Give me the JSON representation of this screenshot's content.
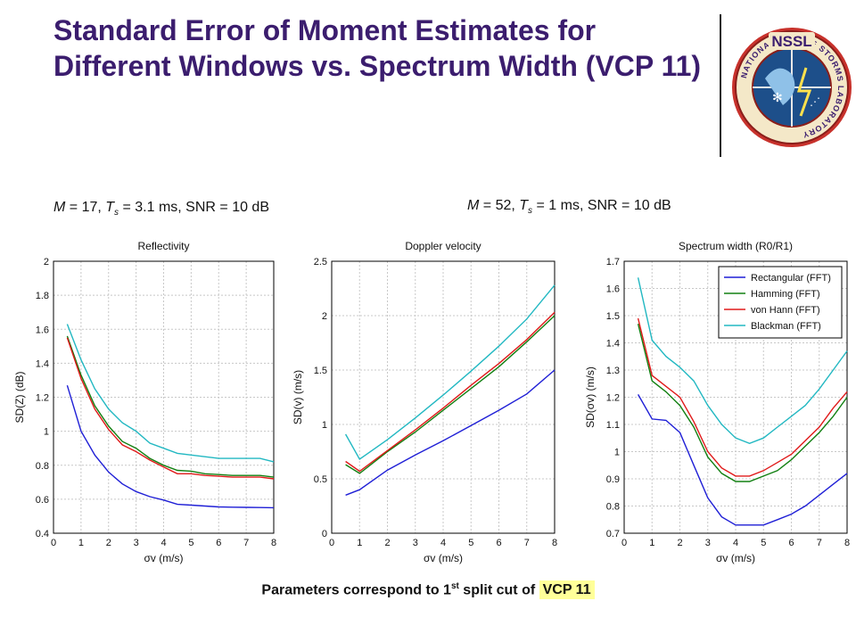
{
  "header": {
    "title": "Standard Error of Moment Estimates for Different Windows vs. Spectrum Width (VCP 11)"
  },
  "logo": {
    "text": "NSSL",
    "ring_text": "NATIONAL SEVERE STORMS LABORATORY"
  },
  "subheads": {
    "left": {
      "M": "M",
      "M_value": " = 17, ",
      "T": "T",
      "T_sub": "s",
      "rest": " = 3.1 ms, SNR = 10 dB"
    },
    "right": {
      "M": "M",
      "M_value": " = 52, ",
      "T": "T",
      "T_sub": "s",
      "rest": " = 1 ms, SNR = 10 dB"
    }
  },
  "footer": {
    "before": "Parameters correspond to 1",
    "sup": "st",
    "after": " split cut of ",
    "highlight": "VCP 11"
  },
  "colors": {
    "title": "#3b1d6e",
    "rect": "#1f1fd6",
    "hamming": "#128012",
    "vonhann": "#e01a1a",
    "blackman": "#22b8c2",
    "highlight": "#ffff99"
  },
  "chart_data": [
    {
      "type": "line",
      "title": "Reflectivity",
      "xlabel": "σv (m/s)",
      "ylabel": "SD(Z) (dB)",
      "xlim": [
        0,
        8
      ],
      "ylim": [
        0.4,
        2
      ],
      "xticks": [
        0,
        1,
        2,
        3,
        4,
        5,
        6,
        7,
        8
      ],
      "yticks": [
        0.4,
        0.6,
        0.8,
        1,
        1.2,
        1.4,
        1.6,
        1.8,
        2
      ],
      "x": [
        0.5,
        1,
        1.5,
        2,
        2.5,
        3,
        3.5,
        4,
        4.5,
        5,
        5.5,
        6,
        6.5,
        7,
        7.5,
        8
      ],
      "series": [
        {
          "color": "#1f1fd6",
          "values": [
            1.27,
            1.0,
            0.86,
            0.76,
            0.69,
            0.645,
            0.615,
            0.595,
            0.57,
            0.565,
            0.56,
            0.555,
            0.553,
            0.552,
            0.551,
            0.55
          ]
        },
        {
          "color": "#128012",
          "values": [
            1.56,
            1.33,
            1.15,
            1.03,
            0.94,
            0.9,
            0.84,
            0.8,
            0.77,
            0.765,
            0.75,
            0.745,
            0.74,
            0.74,
            0.74,
            0.73
          ]
        },
        {
          "color": "#e01a1a",
          "values": [
            1.55,
            1.31,
            1.13,
            1.01,
            0.92,
            0.88,
            0.83,
            0.79,
            0.75,
            0.75,
            0.74,
            0.735,
            0.73,
            0.73,
            0.73,
            0.72
          ]
        },
        {
          "color": "#22b8c2",
          "values": [
            1.63,
            1.42,
            1.25,
            1.13,
            1.05,
            1.0,
            0.93,
            0.9,
            0.87,
            0.86,
            0.85,
            0.84,
            0.84,
            0.84,
            0.84,
            0.82
          ]
        }
      ]
    },
    {
      "type": "line",
      "title": "Doppler velocity",
      "xlabel": "σv (m/s)",
      "ylabel": "SD(v) (m/s)",
      "xlim": [
        0,
        8
      ],
      "ylim": [
        0,
        2.5
      ],
      "xticks": [
        0,
        1,
        2,
        3,
        4,
        5,
        6,
        7,
        8
      ],
      "yticks": [
        0,
        0.5,
        1,
        1.5,
        2,
        2.5
      ],
      "x": [
        0.5,
        1,
        2,
        3,
        4,
        5,
        6,
        7,
        8
      ],
      "series": [
        {
          "color": "#1f1fd6",
          "values": [
            0.35,
            0.4,
            0.58,
            0.72,
            0.85,
            0.99,
            1.13,
            1.28,
            1.5
          ]
        },
        {
          "color": "#128012",
          "values": [
            0.63,
            0.55,
            0.75,
            0.93,
            1.13,
            1.33,
            1.53,
            1.76,
            2.0
          ]
        },
        {
          "color": "#e01a1a",
          "values": [
            0.66,
            0.57,
            0.76,
            0.95,
            1.15,
            1.36,
            1.56,
            1.78,
            2.03
          ]
        },
        {
          "color": "#22b8c2",
          "values": [
            0.91,
            0.68,
            0.86,
            1.06,
            1.27,
            1.49,
            1.72,
            1.97,
            2.28
          ]
        }
      ]
    },
    {
      "type": "line",
      "title": "Spectrum width (R0/R1)",
      "xlabel": "σv (m/s)",
      "ylabel": "SD(σv) (m/s)",
      "xlim": [
        0,
        8
      ],
      "ylim": [
        0.7,
        1.7
      ],
      "xticks": [
        0,
        1,
        2,
        3,
        4,
        5,
        6,
        7,
        8
      ],
      "yticks": [
        0.7,
        0.8,
        0.9,
        1,
        1.1,
        1.2,
        1.3,
        1.4,
        1.5,
        1.6,
        1.7
      ],
      "legend": {
        "placement": "top-right"
      },
      "x": [
        0.5,
        1,
        1.5,
        2,
        2.5,
        3,
        3.5,
        4,
        4.5,
        5,
        5.5,
        6,
        6.5,
        7,
        7.5,
        8
      ],
      "series": [
        {
          "name": "Rectangular (FFT)",
          "color": "#1f1fd6",
          "values": [
            1.21,
            1.12,
            1.115,
            1.07,
            0.95,
            0.83,
            0.76,
            0.73,
            0.73,
            0.73,
            0.75,
            0.77,
            0.8,
            0.84,
            0.88,
            0.92
          ]
        },
        {
          "name": "Hamming (FFT)",
          "color": "#128012",
          "values": [
            1.47,
            1.26,
            1.22,
            1.17,
            1.09,
            0.98,
            0.92,
            0.89,
            0.89,
            0.91,
            0.93,
            0.97,
            1.02,
            1.07,
            1.13,
            1.2
          ]
        },
        {
          "name": "von Hann (FFT)",
          "color": "#e01a1a",
          "values": [
            1.49,
            1.28,
            1.24,
            1.2,
            1.11,
            1.0,
            0.94,
            0.91,
            0.91,
            0.93,
            0.96,
            0.99,
            1.04,
            1.09,
            1.16,
            1.22
          ]
        },
        {
          "name": "Blackman (FFT)",
          "color": "#22b8c2",
          "values": [
            1.64,
            1.41,
            1.35,
            1.31,
            1.26,
            1.17,
            1.1,
            1.05,
            1.03,
            1.05,
            1.09,
            1.13,
            1.17,
            1.23,
            1.3,
            1.37
          ]
        }
      ]
    }
  ]
}
